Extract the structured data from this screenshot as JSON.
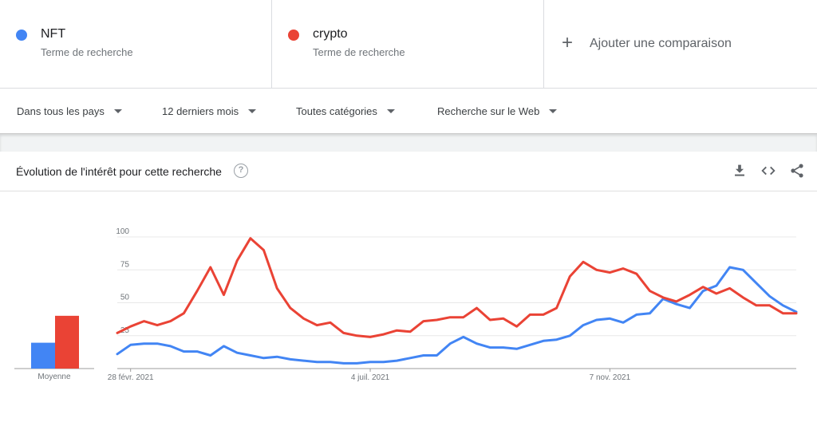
{
  "terms": [
    {
      "name": "NFT",
      "sub": "Terme de recherche",
      "color": "#4285f4"
    },
    {
      "name": "crypto",
      "sub": "Terme de recherche",
      "color": "#ea4335"
    }
  ],
  "add_comparison": {
    "icon": "plus-icon",
    "label": "Ajouter une comparaison"
  },
  "filters": [
    {
      "label": "Dans tous les pays"
    },
    {
      "label": "12 derniers mois"
    },
    {
      "label": "Toutes catégories"
    },
    {
      "label": "Recherche sur le Web"
    }
  ],
  "card": {
    "title": "Évolution de l'intérêt pour cette recherche",
    "help_icon": "question-circle-icon",
    "tools": [
      "download-icon",
      "embed-code-icon",
      "share-icon"
    ]
  },
  "averages": {
    "label": "Moyenne",
    "values": [
      24,
      49
    ]
  },
  "chart_data": {
    "type": "line",
    "title": "Évolution de l'intérêt pour cette recherche",
    "xlabel": "",
    "ylabel": "",
    "ylim": [
      0,
      100
    ],
    "yticks": [
      "25",
      "50",
      "75",
      "100"
    ],
    "ytick_values": [
      25,
      50,
      75,
      100
    ],
    "xticks": [
      "28 févr. 2021",
      "4 juil. 2021",
      "7 nov. 2021"
    ],
    "xtick_index": [
      1,
      19,
      37
    ],
    "grid": true,
    "series": [
      {
        "name": "NFT",
        "color": "#4285f4",
        "values": [
          11,
          18,
          19,
          19,
          17,
          13,
          13,
          10,
          17,
          12,
          10,
          8,
          9,
          7,
          6,
          5,
          5,
          4,
          4,
          5,
          5,
          6,
          8,
          10,
          10,
          19,
          24,
          19,
          16,
          16,
          15,
          18,
          21,
          22,
          25,
          33,
          37,
          38,
          35,
          41,
          42,
          53,
          49,
          46,
          59,
          63,
          77,
          75,
          65,
          55,
          48,
          43
        ]
      },
      {
        "name": "crypto",
        "color": "#ea4335",
        "values": [
          27,
          32,
          36,
          33,
          36,
          42,
          59,
          77,
          56,
          82,
          99,
          90,
          61,
          46,
          38,
          33,
          35,
          27,
          25,
          24,
          26,
          29,
          28,
          36,
          37,
          39,
          39,
          46,
          37,
          38,
          32,
          41,
          41,
          46,
          70,
          81,
          75,
          73,
          76,
          72,
          59,
          54,
          51,
          56,
          62,
          57,
          61,
          54,
          48,
          48,
          42,
          42
        ]
      }
    ]
  }
}
